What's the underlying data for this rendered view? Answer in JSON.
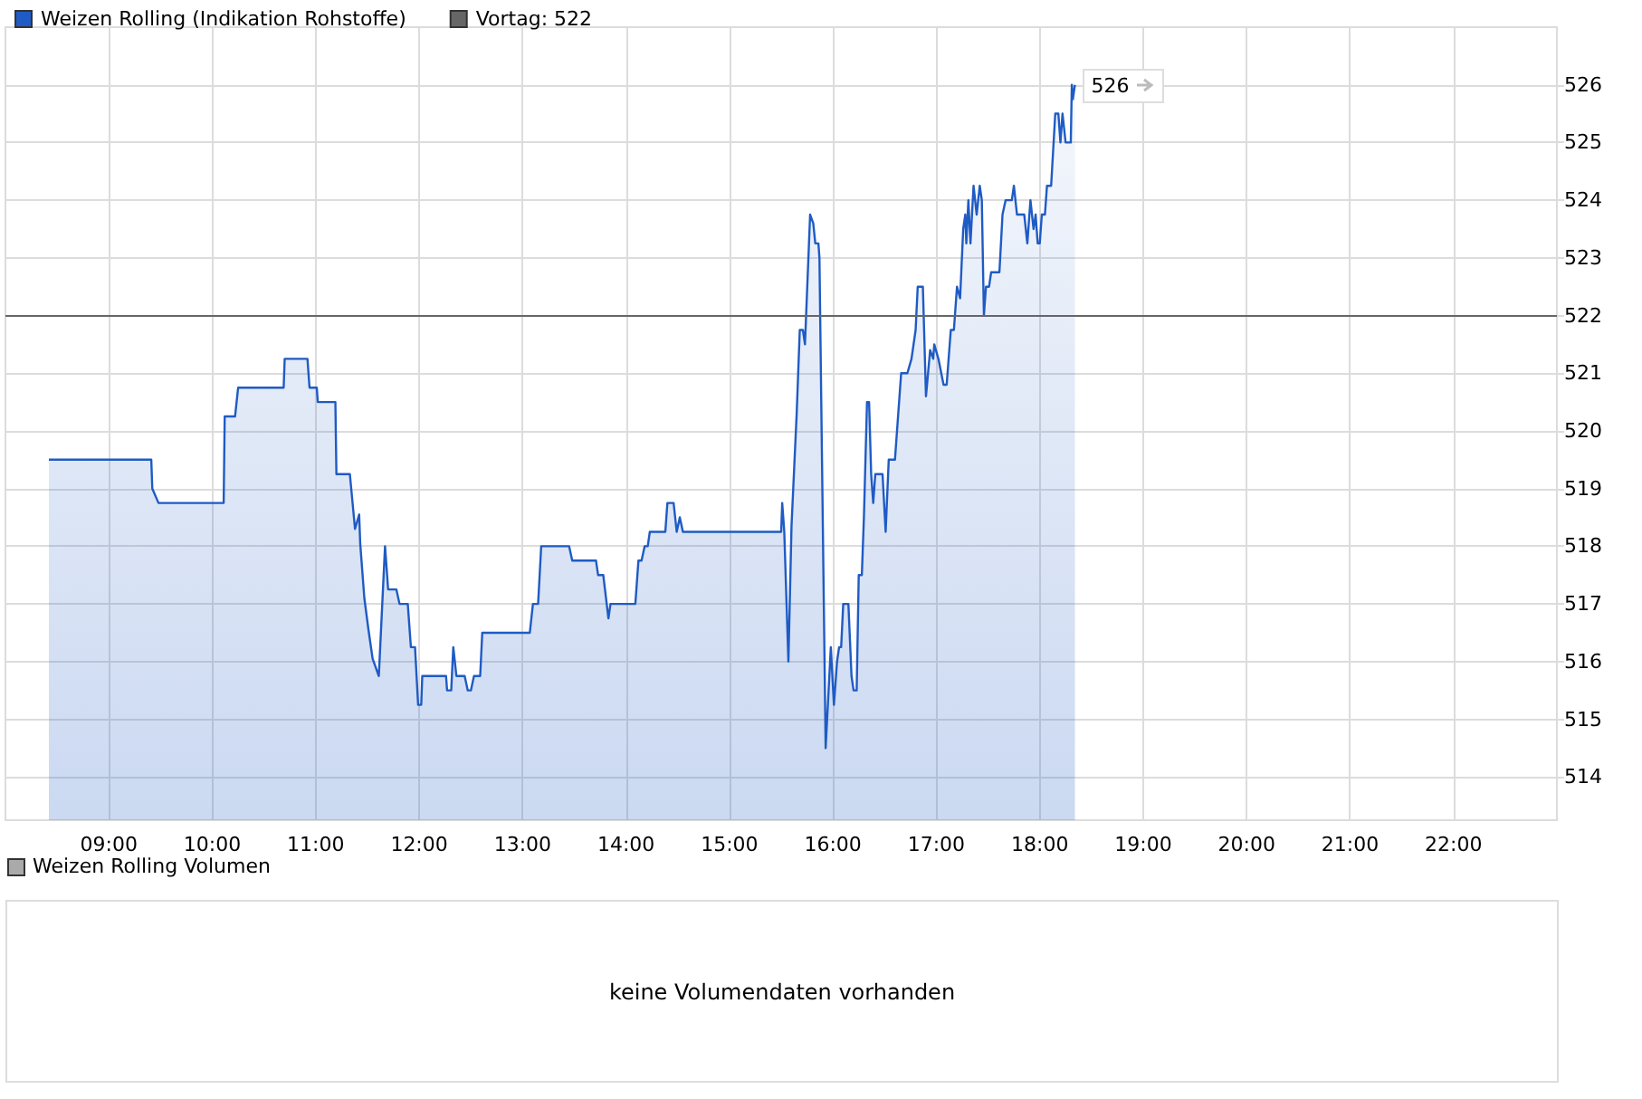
{
  "chart_data": [
    {
      "type": "area",
      "series": [
        {
          "name": "Weizen Rolling (Indikation Rohstoffe)",
          "color": "#1f5bc4",
          "x": [
            8.42,
            9.41,
            9.42,
            9.48,
            10.11,
            10.12,
            10.22,
            10.25,
            10.69,
            10.7,
            10.92,
            10.94,
            11.01,
            11.02,
            11.19,
            11.2,
            11.33,
            11.38,
            11.42,
            11.43,
            11.47,
            11.51,
            11.55,
            11.61,
            11.67,
            11.7,
            11.78,
            11.81,
            11.89,
            11.92,
            11.96,
            11.99,
            12.02,
            12.03,
            12.26,
            12.27,
            12.31,
            12.33,
            12.36,
            12.44,
            12.47,
            12.5,
            12.53,
            12.59,
            12.61,
            13.07,
            13.1,
            13.15,
            13.18,
            13.45,
            13.48,
            13.71,
            13.73,
            13.78,
            13.83,
            13.85,
            14.09,
            14.12,
            14.15,
            14.18,
            14.21,
            14.23,
            14.38,
            14.4,
            14.46,
            14.49,
            14.52,
            14.55,
            15.5,
            15.51,
            15.53,
            15.57,
            15.6,
            15.65,
            15.68,
            15.71,
            15.73,
            15.78,
            15.81,
            15.83,
            15.86,
            15.87,
            15.93,
            15.94,
            15.98,
            16.01,
            16.04,
            16.06,
            16.08,
            16.1,
            16.15,
            16.18,
            16.2,
            16.23,
            16.25,
            16.28,
            16.3,
            16.33,
            16.35,
            16.37,
            16.39,
            16.41,
            16.48,
            16.51,
            16.54,
            16.6,
            16.66,
            16.72,
            16.76,
            16.8,
            16.82,
            16.87,
            16.9,
            16.94,
            16.97,
            16.98,
            17.02,
            17.07,
            17.1,
            17.14,
            17.17,
            17.2,
            17.23,
            17.26,
            17.28,
            17.29,
            17.31,
            17.33,
            17.36,
            17.39,
            17.42,
            17.44,
            17.46,
            17.48,
            17.51,
            17.53,
            17.61,
            17.64,
            17.67,
            17.73,
            17.75,
            17.78,
            17.85,
            17.88,
            17.91,
            17.94,
            17.96,
            17.98,
            18.0,
            18.02,
            18.05,
            18.07,
            18.11,
            18.15,
            18.18,
            18.2,
            18.22,
            18.25,
            18.3,
            18.31,
            18.32,
            18.34
          ],
          "values": [
            519.5,
            519.5,
            519.0,
            518.75,
            518.75,
            520.25,
            520.25,
            520.75,
            520.75,
            521.25,
            521.25,
            520.75,
            520.75,
            520.5,
            520.5,
            519.25,
            519.25,
            518.3,
            518.55,
            518.05,
            517.1,
            516.55,
            516.05,
            515.75,
            518.0,
            517.25,
            517.25,
            517.0,
            517.0,
            516.25,
            516.25,
            515.25,
            515.25,
            515.75,
            515.75,
            515.5,
            515.5,
            516.25,
            515.75,
            515.75,
            515.5,
            515.5,
            515.75,
            515.75,
            516.5,
            516.5,
            517.0,
            517.0,
            518.0,
            518.0,
            517.75,
            517.75,
            517.5,
            517.5,
            516.75,
            517.0,
            517.0,
            517.75,
            517.75,
            518.0,
            518.0,
            518.25,
            518.25,
            518.75,
            518.75,
            518.25,
            518.5,
            518.25,
            518.25,
            518.75,
            518.25,
            516.0,
            518.35,
            520.3,
            521.75,
            521.75,
            521.5,
            523.75,
            523.6,
            523.25,
            523.25,
            523.0,
            514.5,
            514.5,
            516.25,
            515.25,
            516.0,
            516.25,
            516.25,
            517.0,
            517.0,
            515.75,
            515.5,
            515.5,
            517.5,
            517.5,
            518.5,
            520.5,
            520.5,
            519.25,
            518.75,
            519.25,
            519.25,
            518.25,
            519.5,
            519.5,
            521.0,
            521.0,
            521.25,
            521.75,
            522.5,
            522.5,
            520.6,
            521.4,
            521.25,
            521.5,
            521.25,
            520.8,
            520.8,
            521.75,
            521.75,
            522.5,
            522.3,
            523.5,
            523.75,
            523.25,
            524.0,
            523.25,
            524.25,
            523.75,
            524.25,
            524.0,
            522.0,
            522.5,
            522.5,
            522.75,
            522.75,
            523.75,
            524.0,
            524.0,
            524.25,
            523.75,
            523.75,
            523.25,
            524.0,
            523.5,
            523.75,
            523.25,
            523.25,
            523.75,
            523.75,
            524.25,
            524.25,
            525.5,
            525.5,
            525.0,
            525.5,
            525.0,
            525.0,
            526.0,
            525.75,
            526.0
          ]
        }
      ],
      "xlim": [
        8,
        23
      ],
      "xticks": [
        {
          "value": 9,
          "label": "09:00"
        },
        {
          "value": 10,
          "label": "10:00"
        },
        {
          "value": 11,
          "label": "11:00"
        },
        {
          "value": 12,
          "label": "12:00"
        },
        {
          "value": 13,
          "label": "13:00"
        },
        {
          "value": 14,
          "label": "14:00"
        },
        {
          "value": 15,
          "label": "15:00"
        },
        {
          "value": 16,
          "label": "16:00"
        },
        {
          "value": 17,
          "label": "17:00"
        },
        {
          "value": 18,
          "label": "18:00"
        },
        {
          "value": 19,
          "label": "19:00"
        },
        {
          "value": 20,
          "label": "20:00"
        },
        {
          "value": 21,
          "label": "21:00"
        },
        {
          "value": 22,
          "label": "22:00"
        }
      ],
      "ylim": [
        513.25,
        527
      ],
      "yticks": [
        514,
        515,
        516,
        517,
        518,
        519,
        520,
        521,
        522,
        523,
        524,
        525,
        526
      ],
      "ref_lines": [
        {
          "axis": "y",
          "value": 522,
          "label": "Vortag: 522",
          "color": "#666666"
        }
      ],
      "annotations": [
        {
          "text": "526",
          "x": 18.34,
          "y": 526
        }
      ],
      "grid": true,
      "legend": "top left"
    },
    {
      "type": "other",
      "title": "Weizen Rolling Volumen",
      "annotations": [
        "keine Volumendaten vorhanden"
      ]
    }
  ]
}
